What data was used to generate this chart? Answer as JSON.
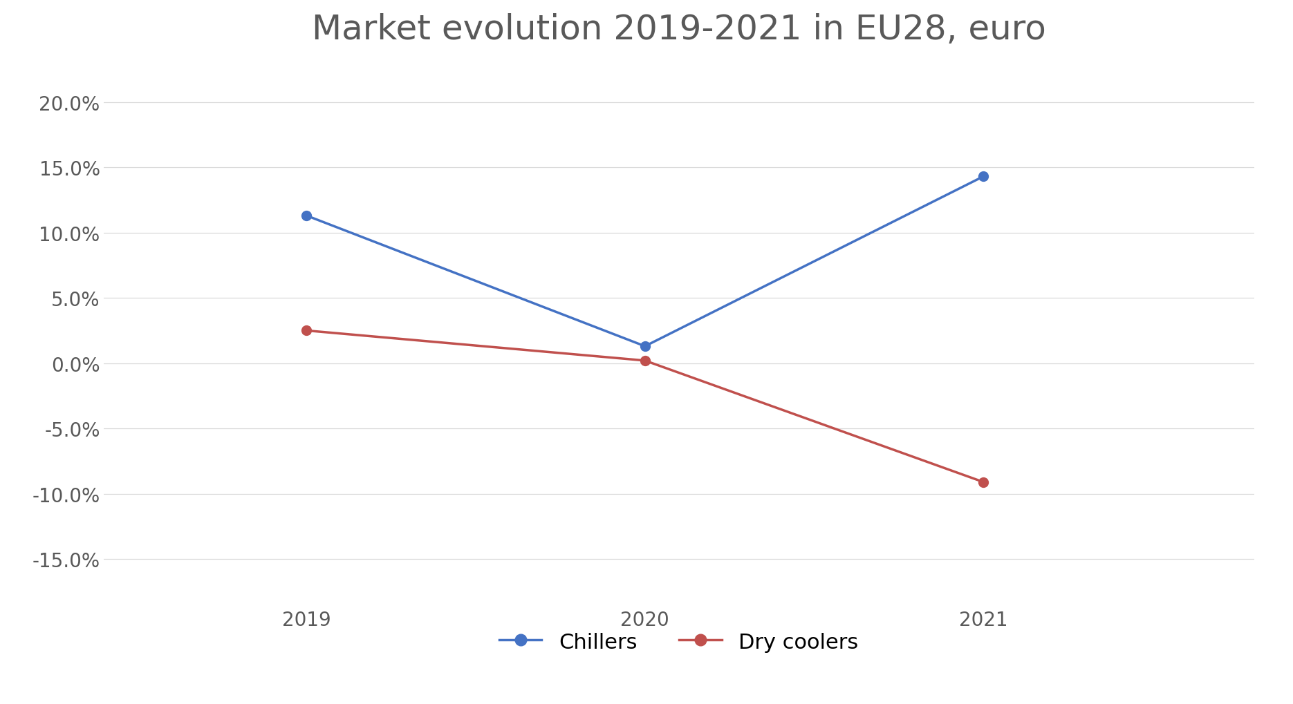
{
  "title": "Market evolution 2019-2021 in EU28, euro",
  "years": [
    2019,
    2020,
    2021
  ],
  "chillers": [
    0.113,
    0.013,
    0.143
  ],
  "dry_coolers": [
    0.025,
    0.002,
    -0.091
  ],
  "chillers_color": "#4472C4",
  "dry_coolers_color": "#C0504D",
  "legend_labels": [
    "Chillers",
    "Dry coolers"
  ],
  "ylim": [
    -0.18,
    0.23
  ],
  "yticks": [
    -0.15,
    -0.1,
    -0.05,
    0.0,
    0.05,
    0.1,
    0.15,
    0.2
  ],
  "background_color": "#FFFFFF",
  "title_fontsize": 36,
  "tick_fontsize": 20,
  "legend_fontsize": 22,
  "marker_size": 10,
  "line_width": 2.5,
  "xlim": [
    2018.4,
    2021.8
  ]
}
